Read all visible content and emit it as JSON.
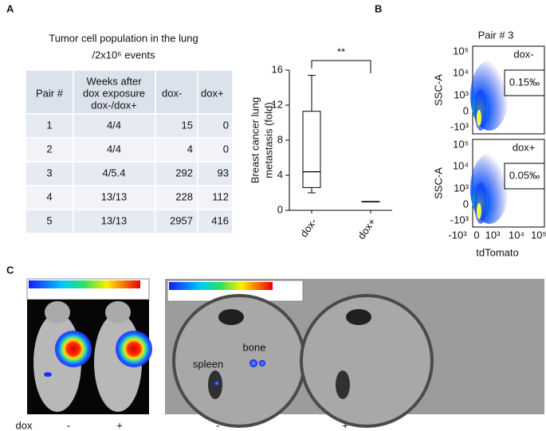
{
  "panel_labels": [
    "A",
    "B",
    "C"
  ],
  "table": {
    "title": [
      "Tumor cell population in the lung",
      "/2x10⁶ events"
    ],
    "header": [
      "Pair #",
      [
        "Weeks after",
        "dox exposure",
        "dox-/dox+"
      ],
      "dox-",
      "dox+"
    ],
    "rows": [
      [
        1,
        "4/4",
        15,
        0
      ],
      [
        2,
        "4/4",
        4,
        0
      ],
      [
        3,
        "4/5.4",
        292,
        93
      ],
      [
        4,
        "13/13",
        228,
        112
      ],
      [
        5,
        "13/13",
        2957,
        416
      ]
    ]
  },
  "chart_data": {
    "type": "box",
    "ylabel": [
      "Breast cancer lung",
      "metastasis (fold)"
    ],
    "categories": [
      "dox-",
      "dox+"
    ],
    "boxes": [
      {
        "min": 2,
        "q1": 2.6,
        "median": 4.4,
        "q3": 11.3,
        "max": 15.4
      },
      {
        "min": 1,
        "q1": 1,
        "median": 1,
        "q3": 1,
        "max": 1
      }
    ],
    "ylim": [
      0,
      16
    ],
    "yticks": [
      0,
      4,
      8,
      12,
      16
    ],
    "annotation": "**",
    "color": "#000000"
  },
  "flow": {
    "title": "Pair # 3",
    "ylabel": "SSC-A",
    "xlabel": "tdTomato",
    "yticks": [
      "10⁵",
      "10⁴",
      "10³",
      "0",
      "-10³"
    ],
    "xticks": [
      "-10³",
      "0",
      "10³",
      "10⁴",
      "10⁵"
    ],
    "plots": [
      {
        "label": "dox-",
        "gate": "0.15‰"
      },
      {
        "label": "dox+",
        "gate": "0.05‰"
      }
    ]
  },
  "imaging": {
    "row_label": "dox",
    "mice": [
      "-",
      "+"
    ],
    "organs": [
      "-",
      "+"
    ],
    "organ_labels": [
      "spleen",
      "bone"
    ]
  }
}
